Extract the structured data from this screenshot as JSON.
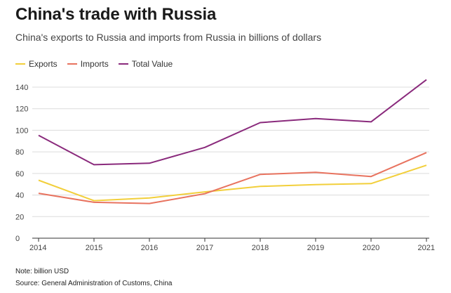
{
  "header": {
    "title": "China's trade with Russia",
    "subtitle": "China's exports to Russia and imports from Russia in billions of dollars"
  },
  "legend": {
    "items": [
      {
        "label": "Exports",
        "color": "#f2cf3b"
      },
      {
        "label": "Imports",
        "color": "#e8735f"
      },
      {
        "label": "Total Value",
        "color": "#8a2a7c"
      }
    ]
  },
  "footer": {
    "note": "Note: billion USD",
    "source": "Source: General Administration of Customs, China"
  },
  "chart_data": {
    "type": "line",
    "title": "China's trade with Russia",
    "subtitle": "China's exports to Russia and imports from Russia in billions of dollars",
    "x": [
      2014,
      2015,
      2016,
      2017,
      2018,
      2019,
      2020,
      2021
    ],
    "ylim": [
      0,
      140
    ],
    "yticks": [
      0,
      20,
      40,
      60,
      80,
      100,
      120,
      140
    ],
    "xlabel": "",
    "ylabel": "",
    "legend_position": "top-left",
    "grid": true,
    "series": [
      {
        "name": "Exports",
        "color": "#f2cf3b",
        "values": [
          53.7,
          34.8,
          37.3,
          42.9,
          48.0,
          49.7,
          50.6,
          67.6
        ]
      },
      {
        "name": "Imports",
        "color": "#e8735f",
        "values": [
          41.6,
          33.3,
          32.2,
          41.2,
          59.1,
          61.0,
          57.2,
          79.3
        ]
      },
      {
        "name": "Total Value",
        "color": "#8a2a7c",
        "values": [
          95.3,
          68.1,
          69.5,
          84.1,
          107.1,
          110.8,
          107.8,
          146.9
        ]
      }
    ]
  }
}
